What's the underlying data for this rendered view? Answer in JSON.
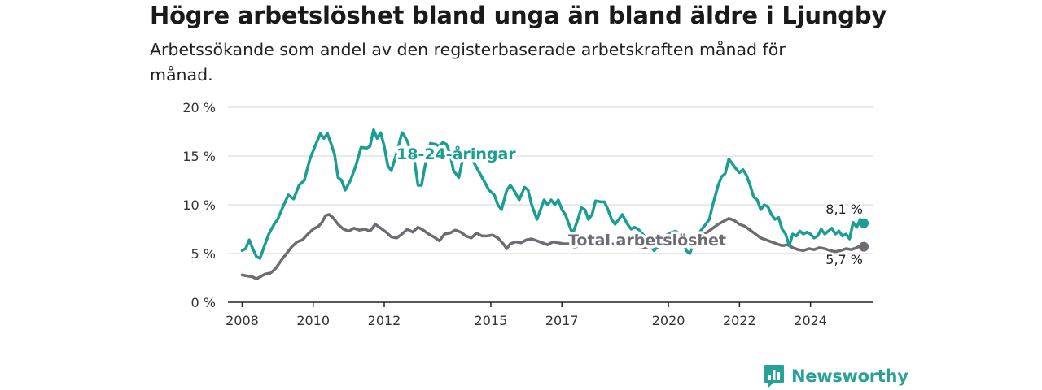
{
  "title": "Högre arbetslöshet bland unga än bland äldre i Ljungby",
  "subtitle": "Arbetssökande som andel av den registerbaserade arbetskraften månad för månad.",
  "brand": {
    "name": "Newsworthy",
    "icon": "bar-chart-badge-icon",
    "color": "#2aa197"
  },
  "chart_data": {
    "type": "line",
    "ylim": [
      0,
      20
    ],
    "xlim": [
      2007.6,
      2025.75
    ],
    "y_ticks": [
      0,
      5,
      10,
      15,
      20
    ],
    "y_tick_labels": [
      "0 %",
      "5 %",
      "10 %",
      "15 %",
      "20 %"
    ],
    "x_ticks": [
      2008,
      2010,
      2012,
      2015,
      2017,
      2020,
      2022,
      2024
    ],
    "x_tick_labels": [
      "2008",
      "2010",
      "2012",
      "2015",
      "2017",
      "2020",
      "2022",
      "2024"
    ],
    "grid": true,
    "series": [
      {
        "name": "18-24-åringar",
        "color": "#1a9e93",
        "end_label": "8,1 %",
        "points": [
          [
            2008.0,
            5.3
          ],
          [
            2008.1,
            5.5
          ],
          [
            2008.2,
            6.4
          ],
          [
            2008.3,
            5.5
          ],
          [
            2008.4,
            4.7
          ],
          [
            2008.5,
            4.5
          ],
          [
            2008.6,
            5.5
          ],
          [
            2008.75,
            7.0
          ],
          [
            2008.9,
            8.0
          ],
          [
            2009.0,
            8.5
          ],
          [
            2009.15,
            9.8
          ],
          [
            2009.3,
            11.0
          ],
          [
            2009.45,
            10.6
          ],
          [
            2009.6,
            12.0
          ],
          [
            2009.75,
            12.5
          ],
          [
            2009.9,
            14.6
          ],
          [
            2010.05,
            16.0
          ],
          [
            2010.2,
            17.3
          ],
          [
            2010.3,
            16.8
          ],
          [
            2010.4,
            17.3
          ],
          [
            2010.5,
            16.3
          ],
          [
            2010.6,
            15.2
          ],
          [
            2010.7,
            12.8
          ],
          [
            2010.8,
            12.5
          ],
          [
            2010.9,
            11.5
          ],
          [
            2011.05,
            12.5
          ],
          [
            2011.2,
            14.0
          ],
          [
            2011.35,
            15.9
          ],
          [
            2011.5,
            15.8
          ],
          [
            2011.6,
            16.0
          ],
          [
            2011.7,
            17.7
          ],
          [
            2011.8,
            16.8
          ],
          [
            2011.9,
            17.4
          ],
          [
            2012.0,
            16.0
          ],
          [
            2012.1,
            14.0
          ],
          [
            2012.2,
            13.5
          ],
          [
            2012.35,
            15.3
          ],
          [
            2012.5,
            17.4
          ],
          [
            2012.55,
            17.2
          ],
          [
            2012.65,
            16.5
          ],
          [
            2012.75,
            15.5
          ],
          [
            2012.85,
            14.5
          ],
          [
            2012.95,
            12.0
          ],
          [
            2013.05,
            12.0
          ],
          [
            2013.15,
            14.0
          ],
          [
            2013.3,
            16.3
          ],
          [
            2013.45,
            16.2
          ],
          [
            2013.55,
            16.0
          ],
          [
            2013.65,
            16.4
          ],
          [
            2013.75,
            16.2
          ],
          [
            2013.85,
            15.3
          ],
          [
            2013.95,
            13.5
          ],
          [
            2014.1,
            12.8
          ],
          [
            2014.2,
            14.5
          ],
          [
            2014.35,
            15.5
          ],
          [
            2014.5,
            14.5
          ],
          [
            2014.65,
            13.5
          ],
          [
            2014.8,
            12.5
          ],
          [
            2014.95,
            11.5
          ],
          [
            2015.1,
            11.0
          ],
          [
            2015.2,
            10.0
          ],
          [
            2015.3,
            9.5
          ],
          [
            2015.45,
            11.5
          ],
          [
            2015.55,
            12.0
          ],
          [
            2015.65,
            11.5
          ],
          [
            2015.8,
            10.5
          ],
          [
            2015.95,
            11.8
          ],
          [
            2016.05,
            11.5
          ],
          [
            2016.15,
            10.0
          ],
          [
            2016.3,
            8.5
          ],
          [
            2016.4,
            9.5
          ],
          [
            2016.5,
            10.5
          ],
          [
            2016.6,
            10.0
          ],
          [
            2016.7,
            10.5
          ],
          [
            2016.8,
            10.0
          ],
          [
            2016.9,
            10.5
          ],
          [
            2017.0,
            9.5
          ],
          [
            2017.1,
            9.0
          ],
          [
            2017.2,
            8.0
          ],
          [
            2017.3,
            7.0
          ],
          [
            2017.45,
            8.5
          ],
          [
            2017.55,
            9.7
          ],
          [
            2017.65,
            9.5
          ],
          [
            2017.75,
            8.5
          ],
          [
            2017.85,
            9.0
          ],
          [
            2017.95,
            10.4
          ],
          [
            2018.1,
            10.3
          ],
          [
            2018.2,
            10.3
          ],
          [
            2018.3,
            9.5
          ],
          [
            2018.4,
            8.5
          ],
          [
            2018.5,
            8.0
          ],
          [
            2018.6,
            8.5
          ],
          [
            2018.7,
            9.0
          ],
          [
            2018.85,
            8.0
          ],
          [
            2018.95,
            7.5
          ],
          [
            2019.05,
            7.7
          ],
          [
            2019.15,
            7.5
          ],
          [
            2019.3,
            6.9
          ],
          [
            2019.45,
            6.0
          ],
          [
            2019.6,
            5.3
          ],
          [
            2019.75,
            6.0
          ],
          [
            2019.9,
            6.8
          ],
          [
            2020.05,
            7.1
          ],
          [
            2020.2,
            7.3
          ],
          [
            2020.35,
            6.9
          ],
          [
            2020.5,
            5.3
          ],
          [
            2020.6,
            5.0
          ],
          [
            2020.75,
            6.5
          ],
          [
            2020.9,
            7.3
          ],
          [
            2021.05,
            8.0
          ],
          [
            2021.15,
            8.5
          ],
          [
            2021.25,
            10.0
          ],
          [
            2021.4,
            12.0
          ],
          [
            2021.5,
            12.9
          ],
          [
            2021.6,
            13.2
          ],
          [
            2021.7,
            14.7
          ],
          [
            2021.8,
            14.2
          ],
          [
            2021.9,
            13.7
          ],
          [
            2022.0,
            13.3
          ],
          [
            2022.1,
            13.6
          ],
          [
            2022.2,
            13.0
          ],
          [
            2022.3,
            12.0
          ],
          [
            2022.4,
            10.8
          ],
          [
            2022.5,
            10.5
          ],
          [
            2022.6,
            9.5
          ],
          [
            2022.7,
            10.0
          ],
          [
            2022.8,
            9.8
          ],
          [
            2022.9,
            9.0
          ],
          [
            2023.0,
            8.5
          ],
          [
            2023.1,
            8.7
          ],
          [
            2023.2,
            7.5
          ],
          [
            2023.3,
            7.0
          ],
          [
            2023.4,
            5.8
          ],
          [
            2023.5,
            7.0
          ],
          [
            2023.6,
            6.8
          ],
          [
            2023.7,
            7.3
          ],
          [
            2023.8,
            7.0
          ],
          [
            2023.9,
            7.2
          ],
          [
            2024.0,
            7.0
          ],
          [
            2024.1,
            6.6
          ],
          [
            2024.2,
            6.8
          ],
          [
            2024.3,
            7.5
          ],
          [
            2024.4,
            7.0
          ],
          [
            2024.5,
            7.3
          ],
          [
            2024.6,
            7.6
          ],
          [
            2024.7,
            7.0
          ],
          [
            2024.8,
            7.3
          ],
          [
            2024.9,
            6.8
          ],
          [
            2025.0,
            7.0
          ],
          [
            2025.1,
            6.5
          ],
          [
            2025.2,
            8.2
          ],
          [
            2025.3,
            7.7
          ],
          [
            2025.4,
            8.5
          ],
          [
            2025.5,
            8.1
          ]
        ]
      },
      {
        "name": "Total arbetslöshet",
        "color": "#6e6c73",
        "end_label": "5,7 %",
        "points": [
          [
            2008.0,
            2.8
          ],
          [
            2008.15,
            2.7
          ],
          [
            2008.3,
            2.6
          ],
          [
            2008.4,
            2.4
          ],
          [
            2008.5,
            2.6
          ],
          [
            2008.65,
            2.9
          ],
          [
            2008.8,
            3.0
          ],
          [
            2008.95,
            3.5
          ],
          [
            2009.1,
            4.3
          ],
          [
            2009.25,
            5.0
          ],
          [
            2009.4,
            5.7
          ],
          [
            2009.55,
            6.2
          ],
          [
            2009.7,
            6.4
          ],
          [
            2009.85,
            7.0
          ],
          [
            2010.0,
            7.5
          ],
          [
            2010.15,
            7.8
          ],
          [
            2010.25,
            8.2
          ],
          [
            2010.35,
            8.9
          ],
          [
            2010.45,
            9.0
          ],
          [
            2010.55,
            8.7
          ],
          [
            2010.7,
            8.0
          ],
          [
            2010.85,
            7.5
          ],
          [
            2011.0,
            7.3
          ],
          [
            2011.15,
            7.6
          ],
          [
            2011.3,
            7.4
          ],
          [
            2011.45,
            7.5
          ],
          [
            2011.6,
            7.3
          ],
          [
            2011.75,
            8.0
          ],
          [
            2011.9,
            7.6
          ],
          [
            2012.05,
            7.2
          ],
          [
            2012.2,
            6.7
          ],
          [
            2012.35,
            6.6
          ],
          [
            2012.5,
            7.0
          ],
          [
            2012.65,
            7.5
          ],
          [
            2012.8,
            7.2
          ],
          [
            2012.95,
            7.7
          ],
          [
            2013.1,
            7.4
          ],
          [
            2013.25,
            7.0
          ],
          [
            2013.4,
            6.7
          ],
          [
            2013.55,
            6.3
          ],
          [
            2013.7,
            7.0
          ],
          [
            2013.85,
            7.1
          ],
          [
            2014.0,
            7.4
          ],
          [
            2014.15,
            7.2
          ],
          [
            2014.3,
            6.8
          ],
          [
            2014.45,
            6.6
          ],
          [
            2014.6,
            7.1
          ],
          [
            2014.75,
            6.8
          ],
          [
            2014.9,
            6.8
          ],
          [
            2015.05,
            6.9
          ],
          [
            2015.2,
            6.6
          ],
          [
            2015.35,
            6.0
          ],
          [
            2015.45,
            5.5
          ],
          [
            2015.55,
            6.0
          ],
          [
            2015.7,
            6.2
          ],
          [
            2015.85,
            6.1
          ],
          [
            2016.0,
            6.4
          ],
          [
            2016.15,
            6.5
          ],
          [
            2016.3,
            6.3
          ],
          [
            2016.45,
            6.1
          ],
          [
            2016.6,
            5.9
          ],
          [
            2016.75,
            6.2
          ],
          [
            2016.9,
            6.1
          ],
          [
            2017.05,
            6.0
          ],
          [
            2017.2,
            6.0
          ],
          [
            2017.35,
            5.6
          ],
          [
            2017.5,
            5.9
          ],
          [
            2017.65,
            6.3
          ],
          [
            2017.8,
            6.1
          ],
          [
            2017.95,
            6.6
          ],
          [
            2018.1,
            6.4
          ],
          [
            2018.25,
            6.3
          ],
          [
            2018.4,
            6.0
          ],
          [
            2018.55,
            5.9
          ],
          [
            2018.7,
            6.0
          ],
          [
            2018.85,
            5.8
          ],
          [
            2019.0,
            5.9
          ],
          [
            2019.15,
            5.7
          ],
          [
            2019.3,
            5.6
          ],
          [
            2019.45,
            5.7
          ],
          [
            2019.6,
            5.5
          ],
          [
            2019.75,
            5.7
          ],
          [
            2019.9,
            6.0
          ],
          [
            2020.05,
            6.1
          ],
          [
            2020.2,
            6.0
          ],
          [
            2020.35,
            5.9
          ],
          [
            2020.5,
            5.8
          ],
          [
            2020.65,
            6.0
          ],
          [
            2020.8,
            6.4
          ],
          [
            2020.95,
            6.9
          ],
          [
            2021.1,
            7.2
          ],
          [
            2021.25,
            7.6
          ],
          [
            2021.4,
            8.0
          ],
          [
            2021.55,
            8.3
          ],
          [
            2021.7,
            8.6
          ],
          [
            2021.85,
            8.4
          ],
          [
            2022.0,
            8.0
          ],
          [
            2022.15,
            7.8
          ],
          [
            2022.3,
            7.4
          ],
          [
            2022.45,
            7.0
          ],
          [
            2022.6,
            6.6
          ],
          [
            2022.75,
            6.4
          ],
          [
            2022.9,
            6.2
          ],
          [
            2023.05,
            6.0
          ],
          [
            2023.2,
            5.8
          ],
          [
            2023.35,
            5.9
          ],
          [
            2023.5,
            5.6
          ],
          [
            2023.65,
            5.4
          ],
          [
            2023.8,
            5.3
          ],
          [
            2023.95,
            5.5
          ],
          [
            2024.1,
            5.4
          ],
          [
            2024.25,
            5.6
          ],
          [
            2024.4,
            5.5
          ],
          [
            2024.55,
            5.3
          ],
          [
            2024.7,
            5.2
          ],
          [
            2024.85,
            5.3
          ],
          [
            2025.0,
            5.5
          ],
          [
            2025.15,
            5.4
          ],
          [
            2025.3,
            5.6
          ],
          [
            2025.4,
            5.8
          ],
          [
            2025.5,
            5.7
          ]
        ]
      }
    ]
  }
}
